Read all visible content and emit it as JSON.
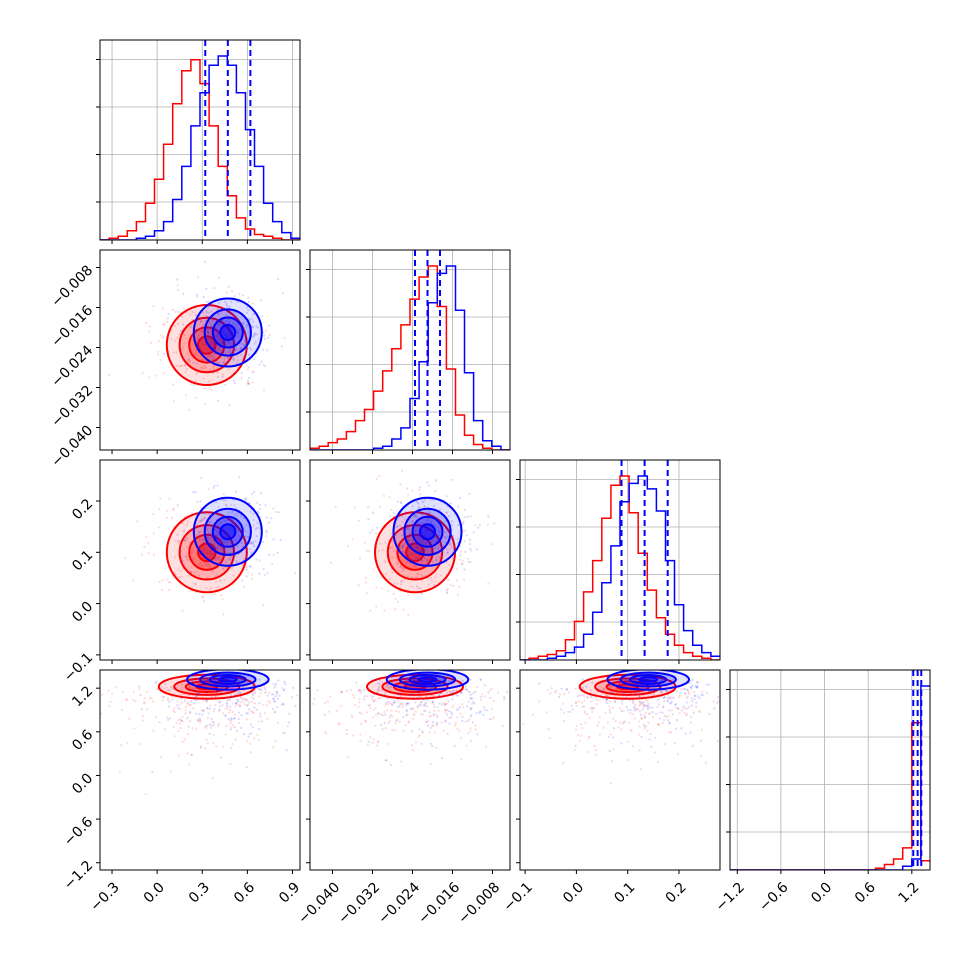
{
  "chart_data": {
    "type": "corner",
    "colors": {
      "series_a": "#0000ff",
      "series_b": "#ff0000",
      "quantile_line": "#0000ff",
      "grid": "#b0b0b0"
    },
    "parameters": [
      {
        "range": [
          -0.38,
          0.95
        ],
        "ticks": [
          -0.3,
          0.0,
          0.3,
          0.6,
          0.9
        ],
        "tick_labels": [
          "−0.3",
          "0.0",
          "0.3",
          "0.6",
          "0.9"
        ],
        "quantiles": [
          0.32,
          0.47,
          0.62
        ],
        "centers": {
          "series_a": [
            0.47,
            0.02
          ],
          "series_b": [
            0.33,
            -0.001
          ]
        }
      },
      {
        "range": [
          -0.0445,
          -0.0045
        ],
        "ticks": [
          -0.04,
          -0.032,
          -0.024,
          -0.016,
          -0.008
        ],
        "tick_labels": [
          "−0.040",
          "−0.032",
          "−0.024",
          "−0.016",
          "−0.008"
        ],
        "quantiles": [
          -0.0235,
          -0.021,
          -0.0185
        ],
        "centers": {
          "series_a": [
            -0.021,
            -0.0225
          ],
          "series_b": [
            -0.0235,
            -0.0235
          ]
        }
      },
      {
        "range": [
          -0.11,
          0.28
        ],
        "ticks": [
          -0.1,
          0.0,
          0.1,
          0.2
        ],
        "tick_labels": [
          "−0.1",
          "0.0",
          "0.1",
          "0.2"
        ],
        "quantiles": [
          0.088,
          0.133,
          0.178
        ],
        "centers": {
          "series_a": [
            0.14,
            0.0
          ],
          "series_b": [
            0.1,
            0.0
          ]
        }
      },
      {
        "range": [
          -1.3,
          1.45
        ],
        "ticks": [
          -1.2,
          -0.6,
          0.0,
          0.6,
          1.2
        ],
        "tick_labels": [
          "−1.2",
          "−0.6",
          "0.0",
          "0.6",
          "1.2"
        ],
        "quantiles": [
          1.22,
          1.28,
          1.33
        ],
        "centers": {
          "series_a": [
            1.32,
            0.0
          ],
          "series_b": [
            1.22,
            0.0
          ]
        }
      }
    ],
    "histograms": [
      {
        "series_a": [
          0,
          0,
          0,
          0,
          1,
          2,
          5,
          10,
          22,
          40,
          62,
          80,
          95,
          100,
          95,
          80,
          60,
          40,
          20,
          10,
          4,
          1
        ],
        "series_b": [
          0,
          1,
          2,
          5,
          10,
          20,
          33,
          52,
          74,
          92,
          98,
          85,
          62,
          40,
          24,
          12,
          6,
          3,
          2,
          1,
          0,
          0
        ]
      },
      {
        "series_a": [
          0,
          0,
          0,
          0,
          0,
          0,
          0,
          1,
          2,
          6,
          12,
          28,
          48,
          80,
          96,
          100,
          76,
          42,
          16,
          5,
          2,
          0
        ],
        "series_b": [
          1,
          2,
          4,
          6,
          10,
          16,
          22,
          32,
          43,
          55,
          68,
          82,
          94,
          100,
          78,
          44,
          19,
          8,
          3,
          1,
          0,
          0
        ]
      },
      {
        "series_a": [
          0,
          0,
          0,
          1,
          2,
          4,
          7,
          14,
          26,
          42,
          62,
          86,
          96,
          100,
          93,
          81,
          54,
          30,
          16,
          8,
          4,
          2
        ],
        "series_b": [
          0,
          1,
          2,
          3,
          5,
          11,
          21,
          37,
          54,
          77,
          95,
          100,
          80,
          58,
          38,
          23,
          14,
          8,
          4,
          2,
          1,
          0
        ]
      },
      {
        "series_a": [
          0,
          0,
          0,
          0,
          0,
          0,
          0,
          0,
          0,
          0,
          0,
          0,
          0,
          0,
          0,
          0,
          0,
          0,
          0,
          2,
          6,
          100
        ],
        "series_b": [
          0,
          0,
          0,
          0,
          0,
          0,
          0,
          0,
          0,
          0,
          0,
          0,
          0,
          0,
          0,
          0,
          1,
          3,
          6,
          12,
          80,
          5
        ]
      }
    ]
  }
}
